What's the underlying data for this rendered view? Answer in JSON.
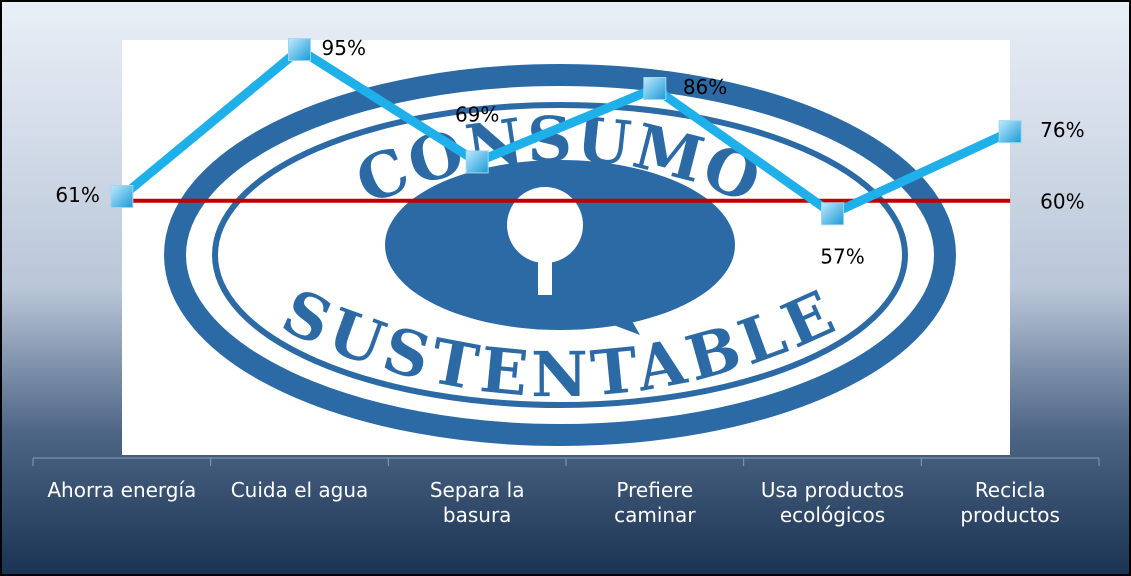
{
  "chart_data": {
    "type": "line",
    "categories": [
      "Ahorra energía",
      "Cuida el agua",
      "Separa la basura",
      "Prefiere caminar",
      "Usa productos ecológicos",
      "Recicla productos"
    ],
    "values": [
      61,
      95,
      69,
      86,
      57,
      76
    ],
    "value_labels": [
      "61%",
      "95%",
      "69%",
      "86%",
      "57%",
      "76%"
    ],
    "color": "#1fb0ea",
    "ylim": [
      0,
      100
    ],
    "reference": {
      "value": 60,
      "label": "60%",
      "color": "#c00000"
    },
    "background_text": [
      "CONSUMO",
      "SUSTENTABLE"
    ]
  }
}
